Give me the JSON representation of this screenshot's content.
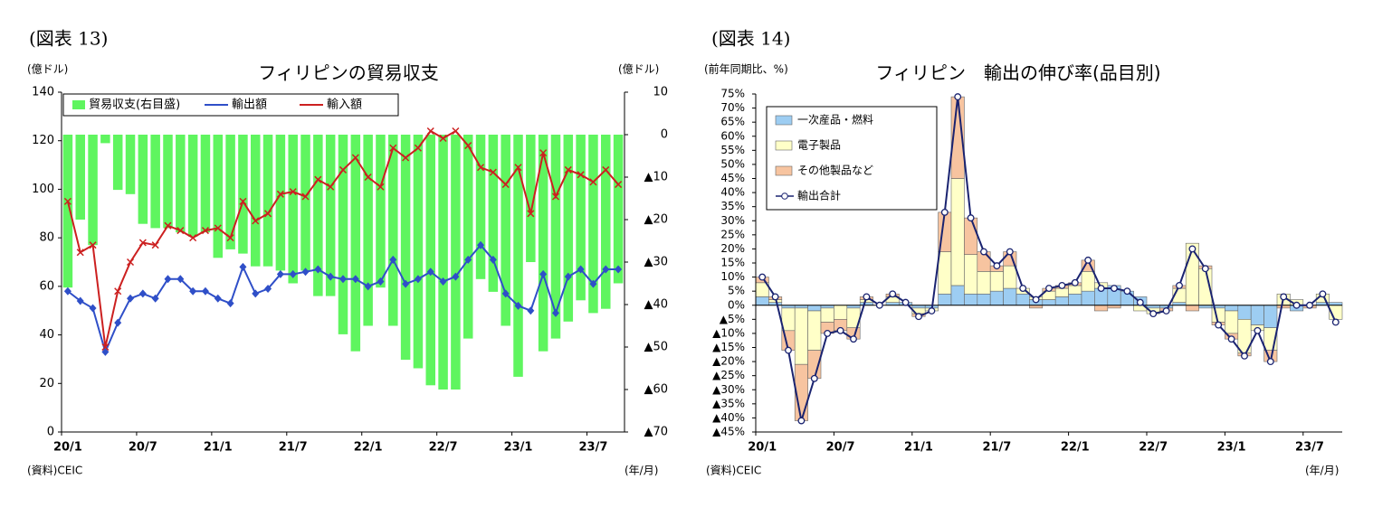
{
  "chart_data": [
    {
      "type": "combo",
      "figure_label": "(図表 13)",
      "title": "フィリピンの貿易収支",
      "y_label": "(億ドル)",
      "y2_label": "(億ドル)",
      "source": "(資料)CEIC",
      "x_unit": "(年/月)",
      "legend": "upper left",
      "categories": [
        "20/1",
        null,
        null,
        null,
        null,
        null,
        "20/7",
        null,
        null,
        null,
        null,
        null,
        "21/1",
        null,
        null,
        null,
        null,
        null,
        "21/7",
        null,
        null,
        null,
        null,
        null,
        "22/1",
        null,
        null,
        null,
        null,
        null,
        "22/7",
        null,
        null,
        null,
        null,
        null,
        "23/1",
        null,
        null,
        null,
        null,
        null,
        "23/7",
        null,
        null
      ],
      "ylim": [
        0,
        140
      ],
      "yticks": [
        0,
        20,
        40,
        60,
        80,
        100,
        120,
        140
      ],
      "y2lim": [
        -70,
        10
      ],
      "y2ticks": [
        10,
        0,
        {
          "value": -10,
          "label": "▲10"
        },
        {
          "value": -20,
          "label": "▲20"
        },
        {
          "value": -30,
          "label": "▲30"
        },
        {
          "value": -40,
          "label": "▲40"
        },
        {
          "value": -50,
          "label": "▲50"
        },
        {
          "value": -60,
          "label": "▲60"
        },
        {
          "value": -70,
          "label": "▲70"
        }
      ],
      "series": [
        {
          "name": "貿易収支(右目盛)",
          "type": "bar",
          "axis": "y2",
          "color": "#5ff55f",
          "values": [
            -36,
            -20,
            -26,
            -2,
            -13,
            -14,
            -21,
            -22,
            -22,
            -23,
            -24,
            -23,
            -29,
            -27,
            -28,
            -31,
            -31,
            -32,
            -35,
            -32,
            -38,
            -38,
            -47,
            -51,
            -45,
            -36,
            -45,
            -53,
            -55,
            -59,
            -60,
            -60,
            -48,
            -34,
            -37,
            -45,
            -57,
            -30,
            -51,
            -48,
            -44,
            -39,
            -42,
            -41,
            -35
          ]
        },
        {
          "name": "輸出額",
          "type": "line",
          "marker": "diamond",
          "color": "#2f4fc8",
          "values": [
            58,
            54,
            51,
            33,
            45,
            55,
            57,
            55,
            63,
            63,
            58,
            58,
            55,
            53,
            68,
            57,
            59,
            65,
            65,
            66,
            67,
            64,
            63,
            63,
            60,
            62,
            71,
            61,
            63,
            66,
            62,
            64,
            71,
            77,
            71,
            57,
            52,
            50,
            65,
            49,
            64,
            67,
            61,
            67,
            67
          ]
        },
        {
          "name": "輸入額",
          "type": "line",
          "marker": "x",
          "color": "#cc2020",
          "values": [
            95,
            74,
            77,
            35,
            58,
            70,
            78,
            77,
            85,
            83,
            80,
            83,
            84,
            80,
            95,
            87,
            90,
            98,
            99,
            97,
            104,
            101,
            108,
            113,
            105,
            101,
            117,
            113,
            117,
            124,
            121,
            124,
            118,
            109,
            107,
            102,
            109,
            90,
            115,
            97,
            108,
            106,
            103,
            108,
            102
          ]
        }
      ]
    },
    {
      "type": "stacked-bar-line",
      "figure_label": "(図表 14)",
      "title": "フィリピン　輸出の伸び率(品目別)",
      "y_label": "(前年同期比、%)",
      "source": "(資料)CEIC",
      "x_unit": "(年/月)",
      "legend": "upper left",
      "categories": [
        "20/1",
        null,
        null,
        null,
        null,
        null,
        "20/7",
        null,
        null,
        null,
        null,
        null,
        "21/1",
        null,
        null,
        null,
        null,
        null,
        "21/7",
        null,
        null,
        null,
        null,
        null,
        "22/1",
        null,
        null,
        null,
        null,
        null,
        "22/7",
        null,
        null,
        null,
        null,
        null,
        "23/1",
        null,
        null,
        null,
        null,
        null,
        "23/7",
        null,
        null
      ],
      "ylim": [
        -45,
        75
      ],
      "yticks": [
        {
          "value": 75,
          "label": "75%"
        },
        {
          "value": 70,
          "label": "70%"
        },
        {
          "value": 65,
          "label": "65%"
        },
        {
          "value": 60,
          "label": "60%"
        },
        {
          "value": 55,
          "label": "55%"
        },
        {
          "value": 50,
          "label": "50%"
        },
        {
          "value": 45,
          "label": "45%"
        },
        {
          "value": 40,
          "label": "40%"
        },
        {
          "value": 35,
          "label": "35%"
        },
        {
          "value": 30,
          "label": "30%"
        },
        {
          "value": 25,
          "label": "25%"
        },
        {
          "value": 20,
          "label": "20%"
        },
        {
          "value": 15,
          "label": "15%"
        },
        {
          "value": 10,
          "label": "10%"
        },
        {
          "value": 5,
          "label": "5%"
        },
        {
          "value": 0,
          "label": "0%"
        },
        {
          "value": -5,
          "label": "▲5%"
        },
        {
          "value": -10,
          "label": "▲10%"
        },
        {
          "value": -15,
          "label": "▲15%"
        },
        {
          "value": -20,
          "label": "▲20%"
        },
        {
          "value": -25,
          "label": "▲25%"
        },
        {
          "value": -30,
          "label": "▲30%"
        },
        {
          "value": -35,
          "label": "▲35%"
        },
        {
          "value": -40,
          "label": "▲40%"
        },
        {
          "value": -45,
          "label": "▲45%"
        }
      ],
      "series": [
        {
          "name": "一次産品・燃料",
          "type": "bar",
          "color": "#9dcdf2",
          "values": [
            3,
            1,
            -1,
            -1,
            -2,
            -1,
            0,
            -1,
            1,
            0,
            1,
            1,
            -1,
            -1,
            4,
            7,
            4,
            4,
            5,
            6,
            4,
            2,
            2,
            3,
            4,
            5,
            6,
            7,
            5,
            3,
            -1,
            -1,
            1,
            0,
            -1,
            -1,
            -2,
            -5,
            -7,
            -8,
            0,
            -2,
            0,
            1,
            1
          ]
        },
        {
          "name": "電子製品",
          "type": "bar",
          "color": "#ffffc8",
          "values": [
            5,
            1,
            -8,
            -20,
            -14,
            -5,
            -5,
            -7,
            1,
            0,
            2,
            0,
            -2,
            -1,
            15,
            38,
            14,
            8,
            7,
            8,
            2,
            1,
            3,
            3,
            3,
            7,
            2,
            0,
            0,
            -2,
            -2,
            0,
            5,
            22,
            13,
            -5,
            -8,
            -12,
            -2,
            -8,
            4,
            2,
            0,
            3,
            -5
          ]
        },
        {
          "name": "その他製品など",
          "type": "bar",
          "color": "#f7c4a0",
          "values": [
            2,
            1,
            -7,
            -20,
            -10,
            -4,
            -4,
            -4,
            1,
            0,
            1,
            0,
            -1,
            0,
            14,
            29,
            13,
            7,
            2,
            5,
            0,
            -1,
            1,
            1,
            1,
            4,
            -2,
            -1,
            0,
            0,
            0,
            -1,
            1,
            -2,
            1,
            -1,
            -2,
            -1,
            0,
            -4,
            -1,
            0,
            -1,
            0,
            0
          ]
        },
        {
          "name": "輸出合計",
          "type": "line",
          "color": "#1a2370",
          "values": [
            10,
            3,
            -16,
            -41,
            -26,
            -10,
            -9,
            -12,
            3,
            0,
            4,
            1,
            -4,
            -2,
            33,
            74,
            31,
            19,
            14,
            19,
            6,
            2,
            6,
            7,
            8,
            16,
            6,
            6,
            5,
            1,
            -3,
            -2,
            7,
            20,
            13,
            -7,
            -12,
            -18,
            -9,
            -20,
            3,
            0,
            0,
            4,
            -6
          ]
        }
      ]
    }
  ]
}
